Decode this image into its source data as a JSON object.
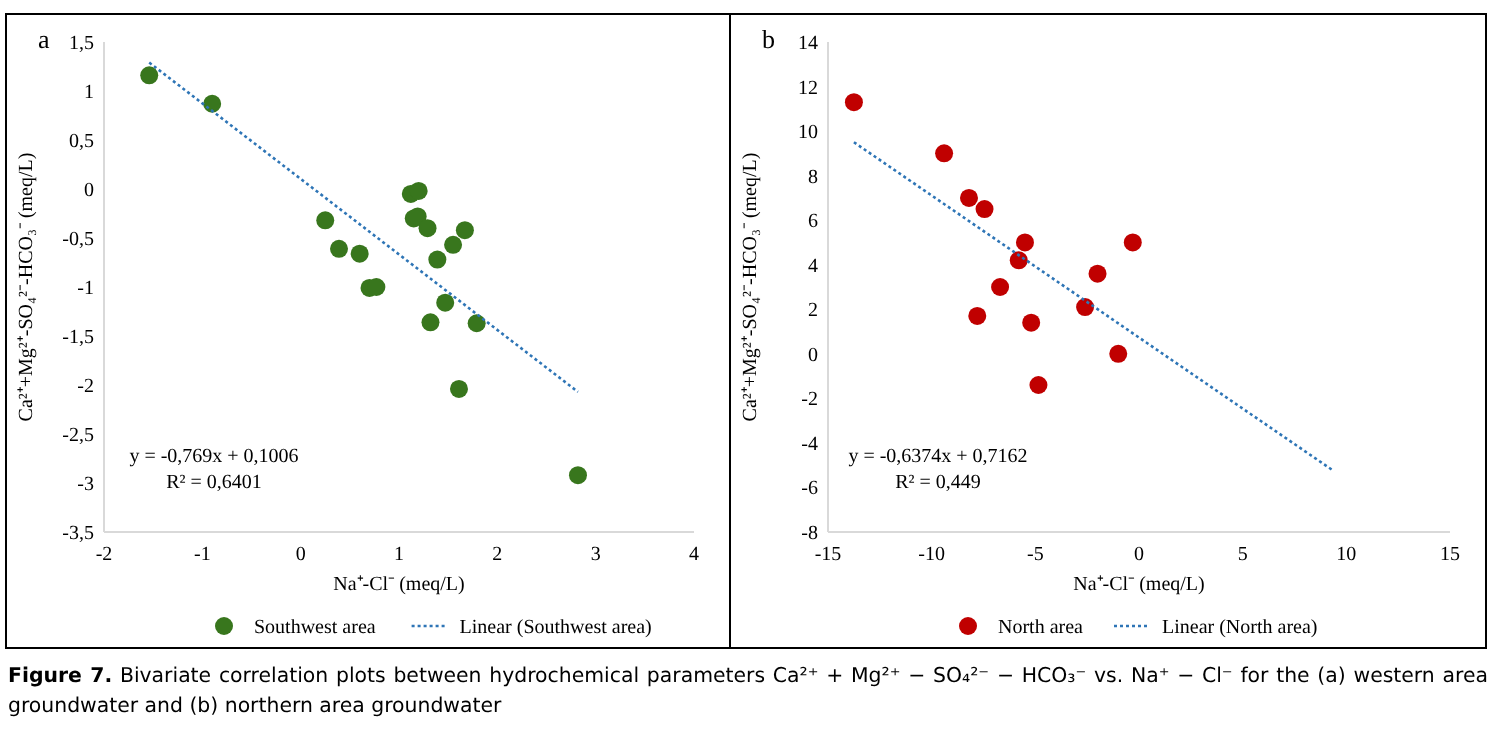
{
  "chart_data": [
    {
      "type": "scatter",
      "title": "a",
      "xlabel": "Na⁺-Cl⁻ (meq/L)",
      "ylabel": "Ca²⁺+Mg²⁺-SO₄²⁻-HCO₃⁻ (meq/L)",
      "xlim": [
        -2,
        4
      ],
      "xticks": [
        -2,
        -1,
        0,
        1,
        2,
        3,
        4
      ],
      "ylim": [
        -3.5,
        1.5
      ],
      "yticks": [
        {
          "value": -3.5,
          "label": "-3,5"
        },
        -3,
        {
          "value": -2.5,
          "label": "-2,5"
        },
        -2,
        {
          "value": -1.5,
          "label": "-1,5"
        },
        -1,
        {
          "value": -0.5,
          "label": "-0,5"
        },
        0,
        {
          "value": 0.5,
          "label": "0,5"
        },
        1,
        {
          "value": 1.5,
          "label": "1,5"
        }
      ],
      "grid": false,
      "legend": "bottom",
      "series": [
        {
          "name": "Southwest area",
          "type": "scatter",
          "color": "#38761d",
          "marker": "circle",
          "x": [
            -1.54,
            -0.9,
            0.25,
            0.39,
            0.6,
            0.7,
            0.77,
            1.12,
            1.2,
            1.15,
            1.19,
            1.29,
            1.39,
            1.32,
            1.47,
            1.55,
            1.67,
            1.79,
            1.61,
            2.82
          ],
          "values": [
            1.16,
            0.87,
            -0.32,
            -0.61,
            -0.66,
            -1.01,
            -1.0,
            -0.05,
            -0.02,
            -0.3,
            -0.28,
            -0.4,
            -0.72,
            -1.36,
            -1.16,
            -0.57,
            -0.42,
            -1.37,
            -2.04,
            -2.92
          ]
        },
        {
          "name": "Linear (Southwest area)",
          "type": "line",
          "color": "#2e75b6",
          "marker": "none",
          "line_style": "dotted",
          "x": [
            -1.54,
            2.82
          ],
          "values": [
            1.29,
            -2.07
          ]
        }
      ],
      "annotations": [
        "y = -0,769x + 0,1006",
        "R² = 0,6401"
      ]
    },
    {
      "type": "scatter",
      "title": "b",
      "xlabel": "Na⁺-Cl⁻ (meq/L)",
      "ylabel": "Ca²⁺+Mg²⁺-SO₄²⁻-HCO₃⁻ (meq/L)",
      "xlim": [
        -15,
        15
      ],
      "xticks": [
        -15,
        -10,
        -5,
        0,
        5,
        10,
        15
      ],
      "ylim": [
        -8,
        14
      ],
      "yticks": [
        -8,
        -6,
        -4,
        -2,
        0,
        2,
        4,
        6,
        8,
        10,
        12,
        14
      ],
      "grid": false,
      "legend": "bottom",
      "series": [
        {
          "name": "North area",
          "type": "scatter",
          "color": "#c00000",
          "marker": "circle",
          "x": [
            -13.75,
            -9.4,
            -8.2,
            -7.45,
            -5.5,
            -5.8,
            -6.7,
            -7.8,
            -5.2,
            -4.85,
            -2.6,
            -2.0,
            -0.3,
            -1.0
          ],
          "values": [
            11.3,
            9.0,
            7.0,
            6.5,
            5.0,
            4.2,
            3.0,
            1.7,
            1.4,
            -1.4,
            2.1,
            3.6,
            5.0,
            0.0
          ]
        },
        {
          "name": "Linear (North area)",
          "type": "line",
          "color": "#2e75b6",
          "marker": "none",
          "line_style": "dotted",
          "x": [
            -13.75,
            9.3
          ],
          "values": [
            9.5,
            -5.2
          ]
        }
      ],
      "annotations": [
        "y = -0,6374x + 0,7162",
        "R² = 0,449",
        "Figure 7. Bivariate correlation plots between hydrochemical parameters Ca²⁺ + Mg²⁺ − SO₄²⁻ − HCO₃⁻ vs. Na⁺ − Cl⁻ for the (a) western area groundwater and (b) northern area groundwater"
      ]
    }
  ]
}
